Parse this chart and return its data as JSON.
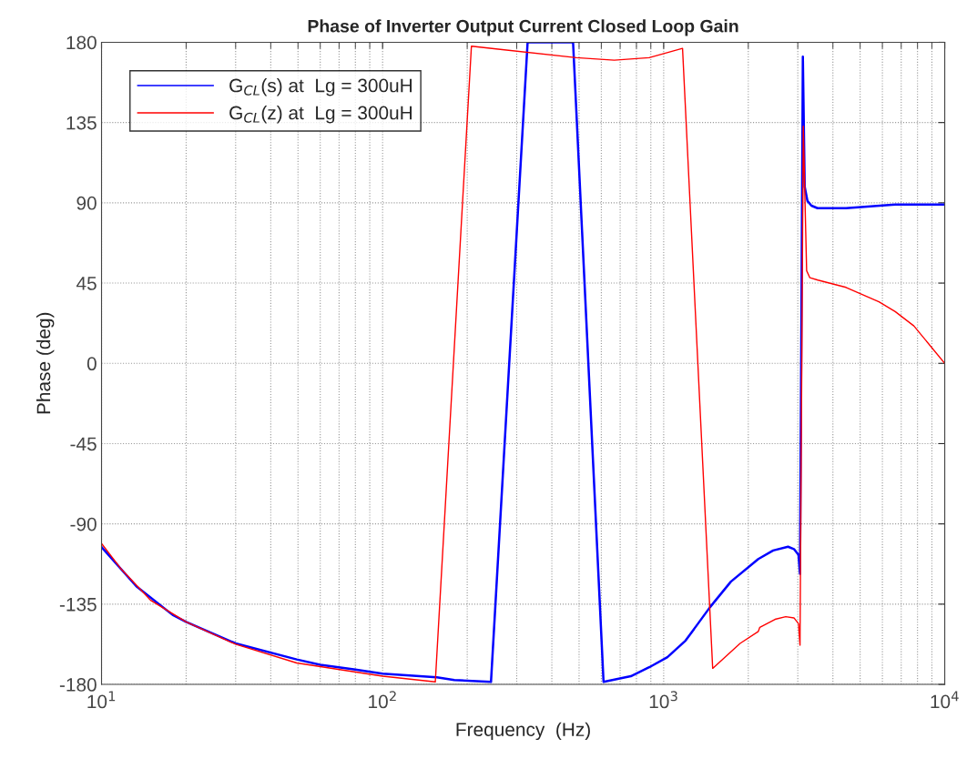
{
  "chart_data": {
    "type": "line",
    "title": "Phase of Inverter Output Current Closed Loop Gain",
    "xlabel": "Frequency  (Hz)",
    "ylabel": "Phase (deg)",
    "log": "x",
    "grid": true,
    "legend": "top left",
    "line_style": "solid",
    "xlim": [
      10,
      10000
    ],
    "xticks": [
      {
        "value": 10,
        "label": "10$^{1}$"
      },
      {
        "value": 100,
        "label": "10$^{2}$"
      },
      {
        "value": 1000,
        "label": "10$^{3}$"
      },
      {
        "value": 10000,
        "label": "10$^{4}$"
      }
    ],
    "ylim": [
      -180,
      180
    ],
    "yticks": [
      -180,
      -135,
      -90,
      -45,
      0,
      45,
      90,
      135,
      180
    ],
    "series": [
      {
        "name": "G$_{CL}$(s) at  Lg = 300uH",
        "color": "#0000ff",
        "x": [
          10,
          13.3,
          17.9,
          20,
          30,
          49.5,
          60,
          79,
          100,
          156,
          180,
          243,
          328,
          476,
          611,
          764,
          888,
          1031,
          1197,
          1460,
          1734,
          2171,
          2452,
          2770,
          2907,
          3018,
          3055,
          3127,
          3175,
          3248,
          3355,
          3526,
          4453,
          6663,
          10000
        ],
        "values": [
          -103,
          -125,
          -141,
          -145,
          -157,
          -166,
          -169,
          -171.5,
          -174,
          -176,
          -177.5,
          -178.6,
          180,
          180,
          -178.6,
          -175.4,
          -170.4,
          -164.7,
          -155.4,
          -136.8,
          -122.4,
          -109.7,
          -104.9,
          -102.8,
          -104.1,
          -107.4,
          -118,
          172,
          99,
          91,
          88.4,
          87,
          87,
          89,
          89
        ]
      },
      {
        "name": "G$_{CL}$(z) at  Lg = 300uH",
        "color": "#ff0000",
        "x": [
          10,
          11.7,
          15,
          20,
          30,
          49.5,
          100,
          154,
          207,
          262,
          489,
          667,
          888,
          1167,
          1494,
          1870,
          2171,
          2198,
          2490,
          2718,
          2907,
          3018,
          3055,
          3138,
          3225,
          3312,
          3535,
          4453,
          5833,
          6663,
          7764,
          10000
        ],
        "values": [
          -101,
          -115,
          -133,
          -145,
          -157.5,
          -168,
          -175.4,
          -178.6,
          177.8,
          176,
          171.4,
          170,
          171.4,
          176.6,
          -171,
          -157,
          -150.3,
          -148,
          -143.5,
          -142,
          -142.7,
          -146,
          -158,
          133,
          52,
          48,
          46.7,
          42.6,
          34.5,
          29,
          21,
          0
        ]
      }
    ]
  }
}
